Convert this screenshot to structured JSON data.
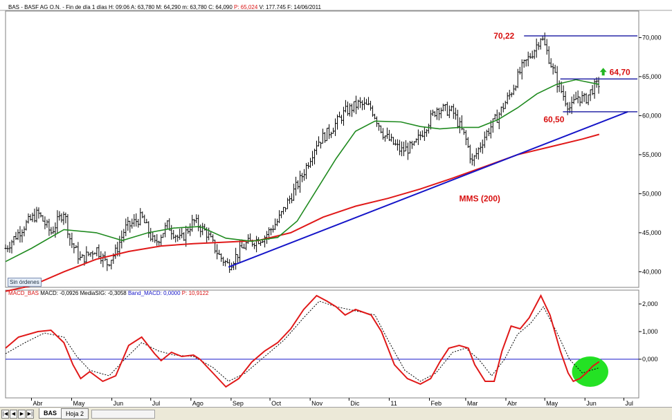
{
  "chart_data": [
    {
      "type": "ohlc",
      "series_label": "BAS - BASF AG O.N. - Fin de día 1 días",
      "header": {
        "H": "H: 09:06",
        "A": "A: 63,780",
        "M": "M: 64,290",
        "m": "m: 63,780",
        "C": "C: 64,090",
        "P": "P: 65,024",
        "V": "V: 177.745",
        "F": "F: 14/06/2011"
      },
      "y_ticks": [
        "40,000",
        "45,000",
        "50,000",
        "55,000",
        "60,000",
        "65,000",
        "70,000"
      ],
      "y_tick_values": [
        40,
        45,
        50,
        55,
        60,
        65,
        70
      ],
      "ylim": [
        38.0,
        73.4
      ],
      "x_labels": [
        {
          "label": "Abr",
          "day": 20
        },
        {
          "label": "May",
          "day": 51
        },
        {
          "label": "Jun",
          "day": 82
        },
        {
          "label": "Jul",
          "day": 112
        },
        {
          "label": "Ago",
          "day": 143
        },
        {
          "label": "Sep",
          "day": 174
        },
        {
          "label": "Oct",
          "day": 204
        },
        {
          "label": "Nov",
          "day": 235
        },
        {
          "label": "Dic",
          "day": 265
        },
        {
          "label": "11",
          "day": 296
        },
        {
          "label": "Feb",
          "day": 327
        },
        {
          "label": "Mar",
          "day": 355
        },
        {
          "label": "Abr",
          "day": 386
        },
        {
          "label": "May",
          "day": 416
        },
        {
          "label": "Jun",
          "day": 447
        },
        {
          "label": "Jul",
          "day": 477
        }
      ],
      "price_path": [
        [
          0,
          43.0
        ],
        [
          15,
          46.0
        ],
        [
          25,
          47.5
        ],
        [
          35,
          45.0
        ],
        [
          45,
          47.8
        ],
        [
          50,
          44.0
        ],
        [
          58,
          41.5
        ],
        [
          70,
          43.0
        ],
        [
          78,
          41.0
        ],
        [
          85,
          42.5
        ],
        [
          92,
          45.5
        ],
        [
          105,
          47.0
        ],
        [
          115,
          43.5
        ],
        [
          125,
          46.0
        ],
        [
          135,
          44.0
        ],
        [
          145,
          46.5
        ],
        [
          155,
          45.0
        ],
        [
          165,
          42.0
        ],
        [
          172,
          40.8
        ],
        [
          185,
          43.5
        ],
        [
          200,
          44.5
        ],
        [
          210,
          46.5
        ],
        [
          218,
          49.0
        ],
        [
          228,
          52.0
        ],
        [
          240,
          56.5
        ],
        [
          250,
          58.0
        ],
        [
          262,
          60.5
        ],
        [
          272,
          61.5
        ],
        [
          282,
          61.0
        ],
        [
          292,
          57.5
        ],
        [
          305,
          55.5
        ],
        [
          315,
          56.0
        ],
        [
          320,
          57.5
        ],
        [
          333,
          61.0
        ],
        [
          345,
          60.5
        ],
        [
          355,
          57.0
        ],
        [
          360,
          54.0
        ],
        [
          370,
          57.5
        ],
        [
          380,
          60.0
        ],
        [
          390,
          63.0
        ],
        [
          398,
          66.0
        ],
        [
          408,
          68.5
        ],
        [
          413,
          70.2
        ],
        [
          418,
          68.0
        ],
        [
          425,
          64.5
        ],
        [
          432,
          62.0
        ],
        [
          436,
          60.8
        ],
        [
          441,
          62.5
        ],
        [
          447,
          62.0
        ],
        [
          453,
          63.5
        ],
        [
          458,
          64.1
        ]
      ],
      "sma_label": "",
      "sma_points": [
        [
          0,
          41.3
        ],
        [
          20,
          43.0
        ],
        [
          45,
          45.4
        ],
        [
          70,
          45.0
        ],
        [
          90,
          44.0
        ],
        [
          110,
          45.0
        ],
        [
          130,
          45.6
        ],
        [
          150,
          45.8
        ],
        [
          170,
          44.3
        ],
        [
          190,
          43.9
        ],
        [
          210,
          44.4
        ],
        [
          225,
          46.5
        ],
        [
          240,
          50.5
        ],
        [
          255,
          54.5
        ],
        [
          270,
          58.0
        ],
        [
          285,
          59.3
        ],
        [
          305,
          59.2
        ],
        [
          320,
          58.6
        ],
        [
          335,
          58.3
        ],
        [
          350,
          58.5
        ],
        [
          365,
          58.5
        ],
        [
          380,
          59.5
        ],
        [
          395,
          61.0
        ],
        [
          410,
          62.8
        ],
        [
          425,
          64.0
        ],
        [
          440,
          64.6
        ],
        [
          458,
          64.0
        ]
      ],
      "mms200_label": "MMS (200)",
      "mms200_points": [
        [
          0,
          37.5
        ],
        [
          20,
          38.2
        ],
        [
          45,
          40.0
        ],
        [
          70,
          41.6
        ],
        [
          95,
          42.6
        ],
        [
          120,
          43.3
        ],
        [
          145,
          43.6
        ],
        [
          170,
          43.8
        ],
        [
          195,
          44.0
        ],
        [
          220,
          45.0
        ],
        [
          245,
          47.0
        ],
        [
          270,
          48.4
        ],
        [
          295,
          49.4
        ],
        [
          320,
          50.6
        ],
        [
          345,
          52.0
        ],
        [
          370,
          53.5
        ],
        [
          395,
          55.0
        ],
        [
          420,
          56.0
        ],
        [
          445,
          57.0
        ],
        [
          458,
          57.6
        ]
      ],
      "trendline": {
        "from": [
          172,
          40.6
        ],
        "to": [
          480,
          60.5
        ]
      },
      "resistance_lines": [
        {
          "value": 70.22,
          "from_day": 400,
          "label": "70,22"
        },
        {
          "value": 64.7,
          "from_day": 428,
          "label": "64,70"
        },
        {
          "value": 60.5,
          "from_day": 430,
          "label": "60,50"
        }
      ],
      "marker": "Sin órdenes",
      "colors": {
        "sma": "#1f8a1f",
        "mms200": "#e01818",
        "trend": "#1414c8",
        "resist": "#1414a0",
        "annotation": "#d81010",
        "arrow": "#22b522"
      }
    },
    {
      "type": "line",
      "indicator_label": "MACD_BAS",
      "legend": {
        "macd": "MACD: -0,0926",
        "signal": "MediaSIG: -0,3058",
        "band": "Band_MACD: 0,0000",
        "p": "P: 10,9122"
      },
      "y_ticks": [
        "2,000",
        "1,000",
        "0,000"
      ],
      "y_tick_values": [
        2,
        1,
        0
      ],
      "ylim": [
        -1.4,
        2.5
      ],
      "macd_points": [
        [
          0,
          0.4
        ],
        [
          10,
          0.8
        ],
        [
          25,
          1.0
        ],
        [
          35,
          1.05
        ],
        [
          45,
          0.6
        ],
        [
          52,
          -0.2
        ],
        [
          58,
          -0.7
        ],
        [
          65,
          -0.45
        ],
        [
          75,
          -0.8
        ],
        [
          85,
          -0.6
        ],
        [
          95,
          0.5
        ],
        [
          105,
          0.8
        ],
        [
          115,
          0.2
        ],
        [
          120,
          -0.05
        ],
        [
          128,
          0.25
        ],
        [
          136,
          0.1
        ],
        [
          145,
          0.15
        ],
        [
          150,
          0.0
        ],
        [
          160,
          -0.5
        ],
        [
          170,
          -1.0
        ],
        [
          180,
          -0.7
        ],
        [
          190,
          -0.1
        ],
        [
          200,
          0.3
        ],
        [
          210,
          0.6
        ],
        [
          220,
          1.1
        ],
        [
          230,
          1.8
        ],
        [
          240,
          2.3
        ],
        [
          248,
          2.1
        ],
        [
          255,
          1.9
        ],
        [
          262,
          1.6
        ],
        [
          270,
          1.8
        ],
        [
          282,
          1.6
        ],
        [
          290,
          1.0
        ],
        [
          300,
          -0.2
        ],
        [
          310,
          -0.7
        ],
        [
          320,
          -0.9
        ],
        [
          328,
          -0.7
        ],
        [
          335,
          -0.1
        ],
        [
          342,
          0.4
        ],
        [
          350,
          0.5
        ],
        [
          357,
          0.4
        ],
        [
          362,
          -0.2
        ],
        [
          370,
          -0.8
        ],
        [
          377,
          -0.8
        ],
        [
          383,
          0.3
        ],
        [
          390,
          1.2
        ],
        [
          397,
          1.1
        ],
        [
          404,
          1.5
        ],
        [
          413,
          2.3
        ],
        [
          420,
          1.6
        ],
        [
          428,
          0.3
        ],
        [
          434,
          -0.5
        ],
        [
          438,
          -0.8
        ],
        [
          443,
          -0.7
        ],
        [
          448,
          -0.5
        ],
        [
          453,
          -0.25
        ],
        [
          458,
          -0.09
        ]
      ],
      "signal_points": [
        [
          0,
          0.2
        ],
        [
          15,
          0.6
        ],
        [
          30,
          0.95
        ],
        [
          45,
          0.8
        ],
        [
          55,
          0.1
        ],
        [
          65,
          -0.4
        ],
        [
          80,
          -0.6
        ],
        [
          92,
          0.0
        ],
        [
          105,
          0.6
        ],
        [
          118,
          0.3
        ],
        [
          130,
          0.15
        ],
        [
          145,
          0.1
        ],
        [
          160,
          -0.3
        ],
        [
          172,
          -0.8
        ],
        [
          185,
          -0.5
        ],
        [
          200,
          0.1
        ],
        [
          215,
          0.7
        ],
        [
          230,
          1.5
        ],
        [
          242,
          2.1
        ],
        [
          255,
          1.9
        ],
        [
          270,
          1.75
        ],
        [
          285,
          1.6
        ],
        [
          295,
          0.7
        ],
        [
          308,
          -0.4
        ],
        [
          320,
          -0.8
        ],
        [
          332,
          -0.5
        ],
        [
          345,
          0.25
        ],
        [
          355,
          0.4
        ],
        [
          365,
          0.0
        ],
        [
          375,
          -0.6
        ],
        [
          385,
          0.0
        ],
        [
          395,
          0.9
        ],
        [
          405,
          1.3
        ],
        [
          415,
          1.9
        ],
        [
          425,
          1.0
        ],
        [
          435,
          0.0
        ],
        [
          445,
          -0.5
        ],
        [
          458,
          -0.31
        ]
      ],
      "highlight": {
        "center": [
          451,
          -0.45
        ],
        "rx_days": 14,
        "ry_value": 0.55
      },
      "colors": {
        "macd": "#e01818",
        "signal": "#000000",
        "band": "#1414c8",
        "highlight": "#18e018"
      }
    }
  ],
  "tabs": {
    "active": "BAS",
    "other": "Hoja 2"
  },
  "nav": {
    "first": "|◀",
    "prev": "◀",
    "next": "▶",
    "last": "▶|"
  }
}
